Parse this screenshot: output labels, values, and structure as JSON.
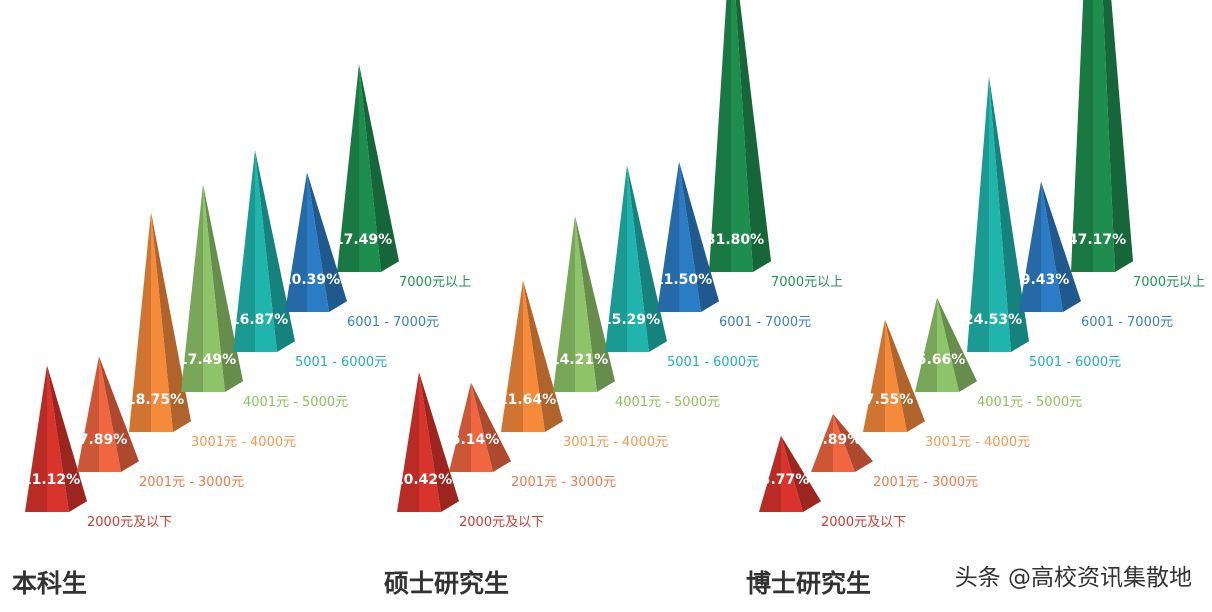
{
  "chart_data": [
    {
      "type": "bar",
      "title": "本科生",
      "categories": [
        "2000元及以下",
        "2001元 - 3000元",
        "3001元 - 4000元",
        "4001元 - 5000元",
        "5001 - 6000元",
        "6001 - 7000元",
        "7000元以上"
      ],
      "values": [
        11.12,
        7.89,
        18.75,
        17.49,
        16.87,
        10.39,
        17.49
      ],
      "value_labels": [
        "11.12%",
        "7.89%",
        "18.75%",
        "17.49%",
        "16.87%",
        "10.39%",
        "17.49%"
      ]
    },
    {
      "type": "bar",
      "title": "硕士研究生",
      "categories": [
        "2000元及以下",
        "2001元 - 3000元",
        "3001元 - 4000元",
        "4001元 - 5000元",
        "5001 - 6000元",
        "6001 - 7000元",
        "7000元以上"
      ],
      "values": [
        10.42,
        5.14,
        11.64,
        14.21,
        15.29,
        11.5,
        31.8
      ],
      "value_labels": [
        "10.42%",
        "5.14%",
        "11.64%",
        "14.21%",
        "15.29%",
        "11.50%",
        "31.80%"
      ]
    },
    {
      "type": "bar",
      "title": "博士研究生",
      "categories": [
        "2000元及以下",
        "2001元 - 3000元",
        "3001元 - 4000元",
        "4001元 - 5000元",
        "5001 - 6000元",
        "6001 - 7000元",
        "7000元以上"
      ],
      "values": [
        3.77,
        1.89,
        7.55,
        5.66,
        24.53,
        9.43,
        47.17
      ],
      "value_labels": [
        "3.77%",
        "1.89%",
        "7.55%",
        "5.66%",
        "24.53%",
        "9.43%",
        "47.17%"
      ]
    }
  ],
  "colors": [
    "#d8342b",
    "#f06640",
    "#f58a3a",
    "#8dc46a",
    "#1fb5ad",
    "#2b7cc5",
    "#1e8e4f"
  ],
  "category_label_colors": [
    "#d43a2f",
    "#f07a4a",
    "#f59a50",
    "#8cc25e",
    "#1eafc4",
    "#3a7fc8",
    "#1e9655"
  ],
  "watermark": "头条 @高校资讯集散地"
}
